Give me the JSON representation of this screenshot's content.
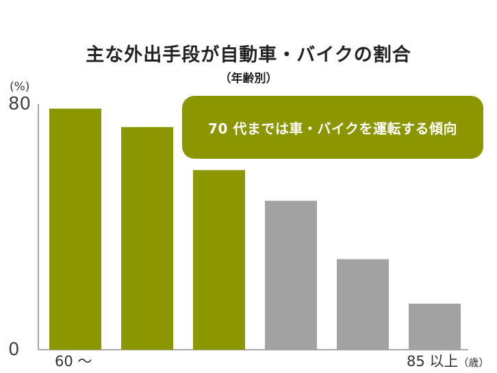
{
  "chart_data": {
    "type": "bar",
    "title": "主な外出手段が自動車・バイクの割合",
    "subtitle": "（年齢別）",
    "ylabel": "(%)",
    "ylim": [
      0,
      80
    ],
    "yticks": [
      "80",
      "0"
    ],
    "x_first_label": "60 ～",
    "x_last_label": "85 以上",
    "x_last_unit": "（歳）",
    "values": [
      78.5,
      72.5,
      58.5,
      48.5,
      29.5,
      15.0
    ],
    "colors": [
      "#8b9600",
      "#8b9600",
      "#8b9600",
      "#a2a2a2",
      "#a2a2a2",
      "#a2a2a2"
    ],
    "annotation": "70 代までは車・バイクを運転する傾向",
    "grid": false
  }
}
